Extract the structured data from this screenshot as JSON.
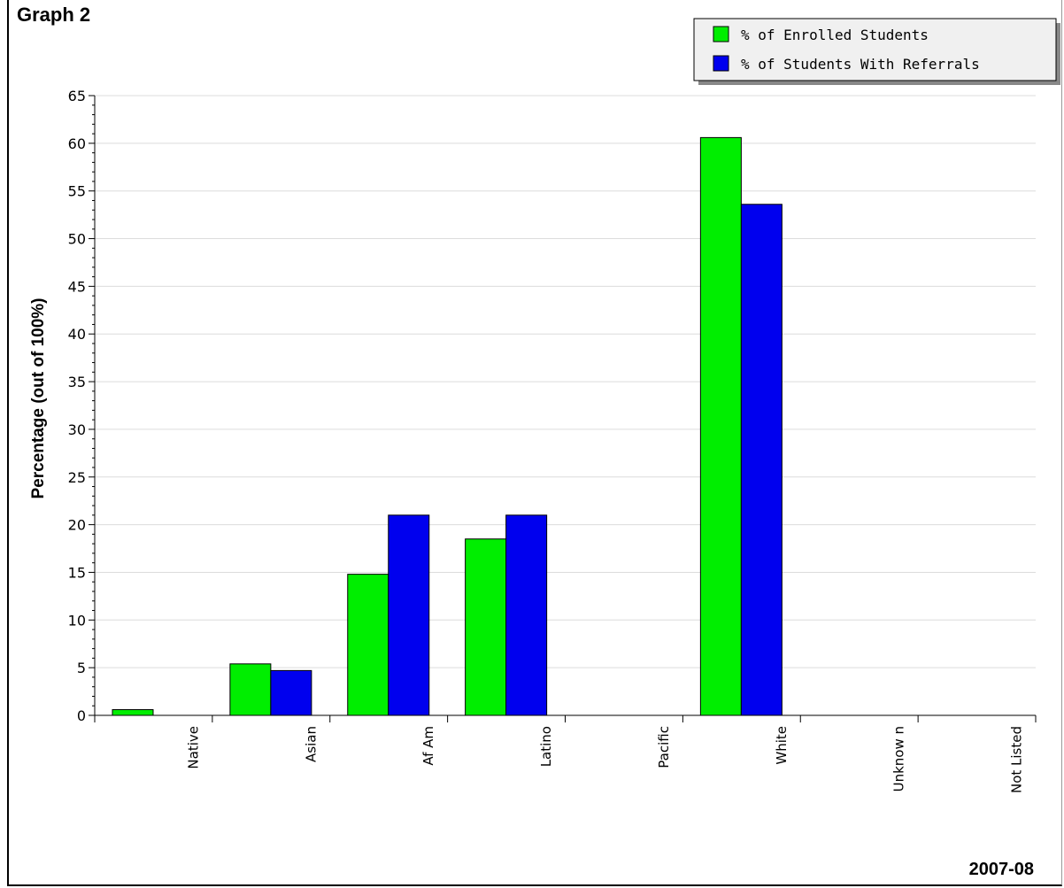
{
  "chart_data": {
    "type": "bar",
    "title": "Graph 2",
    "ylabel": "Percentage (out of 100%)",
    "xlabel": "",
    "period": "2007-08",
    "ylim": [
      0,
      65
    ],
    "yticks": [
      "0",
      "5",
      "10",
      "15",
      "20",
      "25",
      "30",
      "35",
      "40",
      "45",
      "50",
      "55",
      "60",
      "65"
    ],
    "categories": [
      "Native",
      "Asian",
      "Af Am",
      "Latino",
      "Pacific",
      "White",
      "Unknow n",
      "Not Listed"
    ],
    "series": [
      {
        "name": "% of Enrolled Students",
        "color": "#00ee00",
        "values": [
          0.6,
          5.4,
          14.8,
          18.5,
          0,
          60.6,
          0,
          0
        ]
      },
      {
        "name": "% of Students With Referrals",
        "color": "#0000ee",
        "values": [
          0,
          4.7,
          21.0,
          21.0,
          0,
          53.6,
          0,
          0
        ]
      }
    ],
    "grid": true,
    "legend_position": "top-right"
  }
}
